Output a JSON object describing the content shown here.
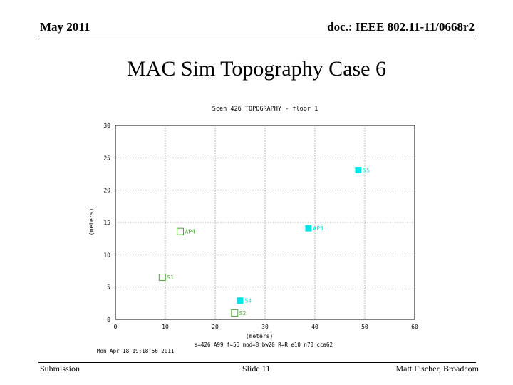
{
  "header": {
    "date": "May 2011",
    "doc": "doc.: IEEE 802.11-11/0668r2"
  },
  "slide": {
    "title": "MAC Sim Topography Case 6"
  },
  "footer": {
    "left": "Submission",
    "center": "Slide 11",
    "right": "Matt Fischer, Broadcom"
  },
  "chart_data": {
    "type": "scatter",
    "title": "Scen 426 TOPOGRAPHY - floor 1",
    "xlabel": "(meters)",
    "ylabel": "(meters)",
    "xlim": [
      0,
      60
    ],
    "ylim": [
      0,
      30
    ],
    "xticks": [
      0,
      10,
      20,
      30,
      40,
      50,
      60
    ],
    "yticks": [
      0,
      5,
      10,
      15,
      20,
      25,
      30
    ],
    "grid": true,
    "info_line": "s=426 A99 f=56 mod=8 bw20 R=R e10 n70 cca62",
    "timestamp": "Mon Apr 18 19:18:56 2011",
    "points": [
      {
        "label": "S5",
        "x": 48.7,
        "y": 23.1,
        "color": "#00e6e6",
        "filled": true
      },
      {
        "label": "AP3",
        "x": 38.7,
        "y": 14.1,
        "color": "#00e6e6",
        "filled": true
      },
      {
        "label": "AP4",
        "x": 13.0,
        "y": 13.6,
        "color": "#4aa832",
        "filled": false
      },
      {
        "label": "S1",
        "x": 9.4,
        "y": 6.5,
        "color": "#4aa832",
        "filled": false
      },
      {
        "label": "S4",
        "x": 25.0,
        "y": 2.9,
        "color": "#00e6e6",
        "filled": true
      },
      {
        "label": "S2",
        "x": 23.9,
        "y": 1.0,
        "color": "#4aa832",
        "filled": false
      }
    ]
  }
}
